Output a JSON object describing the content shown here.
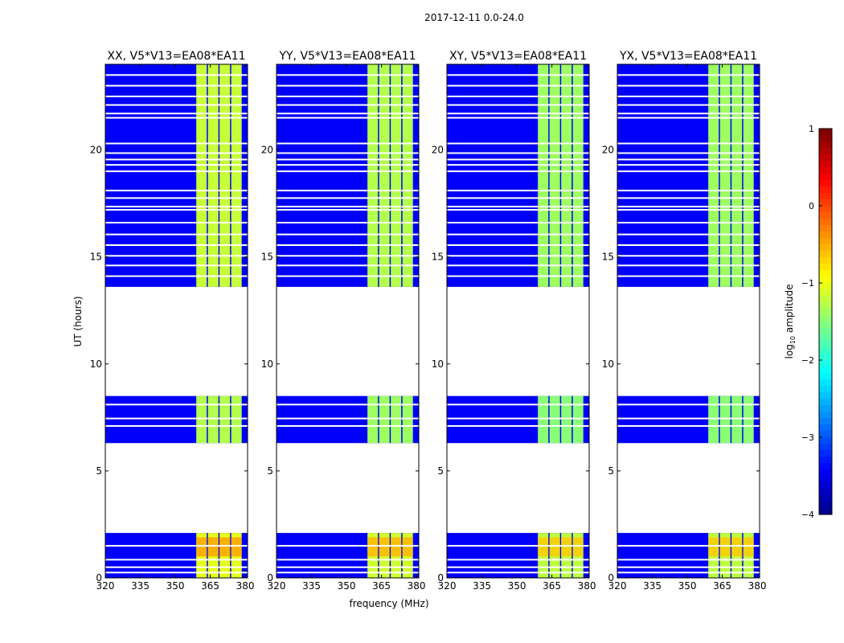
{
  "figure_title": "2017-12-11 0.0-24.0",
  "chart_data": {
    "type": "heatmap",
    "title": "2017-12-11 0.0-24.0",
    "xlabel": "frequency (MHz)",
    "ylabel": "UT (hours)",
    "xlim": [
      320,
      381
    ],
    "ylim": [
      0,
      24
    ],
    "xticks": [
      320,
      335,
      350,
      365,
      380
    ],
    "yticks": [
      0,
      5,
      10,
      15,
      20
    ],
    "colorbar": {
      "label_prefix": "log",
      "label_sub": "10",
      "label_suffix": " amplitude",
      "range": [
        -4,
        1
      ],
      "ticks": [
        1,
        0,
        -1,
        -2,
        -3,
        -4
      ],
      "tick_labels": [
        "1",
        "0",
        "−1",
        "−2",
        "−3",
        "−4"
      ]
    },
    "panels": [
      {
        "title": "XX, V5*V13=EA08*EA11",
        "pol": "XX"
      },
      {
        "title": "YY, V5*V13=EA08*EA11",
        "pol": "YY"
      },
      {
        "title": "XY, V5*V13=EA08*EA11",
        "pol": "XY"
      },
      {
        "title": "YX, V5*V13=EA08*EA11",
        "pol": "YX"
      }
    ],
    "data_blocks_ut": [
      [
        0.0,
        2.1
      ],
      [
        6.3,
        8.5
      ],
      [
        13.6,
        24.0
      ]
    ],
    "flagged_gaps_ut": [
      [
        2.1,
        6.3
      ],
      [
        8.5,
        13.6
      ]
    ],
    "rfi_channels_mhz": [
      [
        359,
        364
      ],
      [
        364,
        369
      ],
      [
        369,
        374
      ],
      [
        374,
        379
      ]
    ],
    "background_log_amplitude": -3.4,
    "rfi_log_amplitude": {
      "XX": -1.0,
      "YY": -1.1,
      "XY": -1.2,
      "YX": -1.2
    },
    "blank_rows_ut": [
      0.25,
      0.5,
      0.85,
      1.5,
      7.1,
      7.45,
      8.1,
      14.1,
      14.6,
      15.05,
      15.55,
      16.05,
      16.6,
      17.2,
      17.35,
      17.75,
      18.1,
      19.0,
      19.3,
      19.55,
      19.85,
      20.3,
      21.5,
      21.7,
      22.1,
      22.5,
      23.0,
      23.5
    ]
  }
}
